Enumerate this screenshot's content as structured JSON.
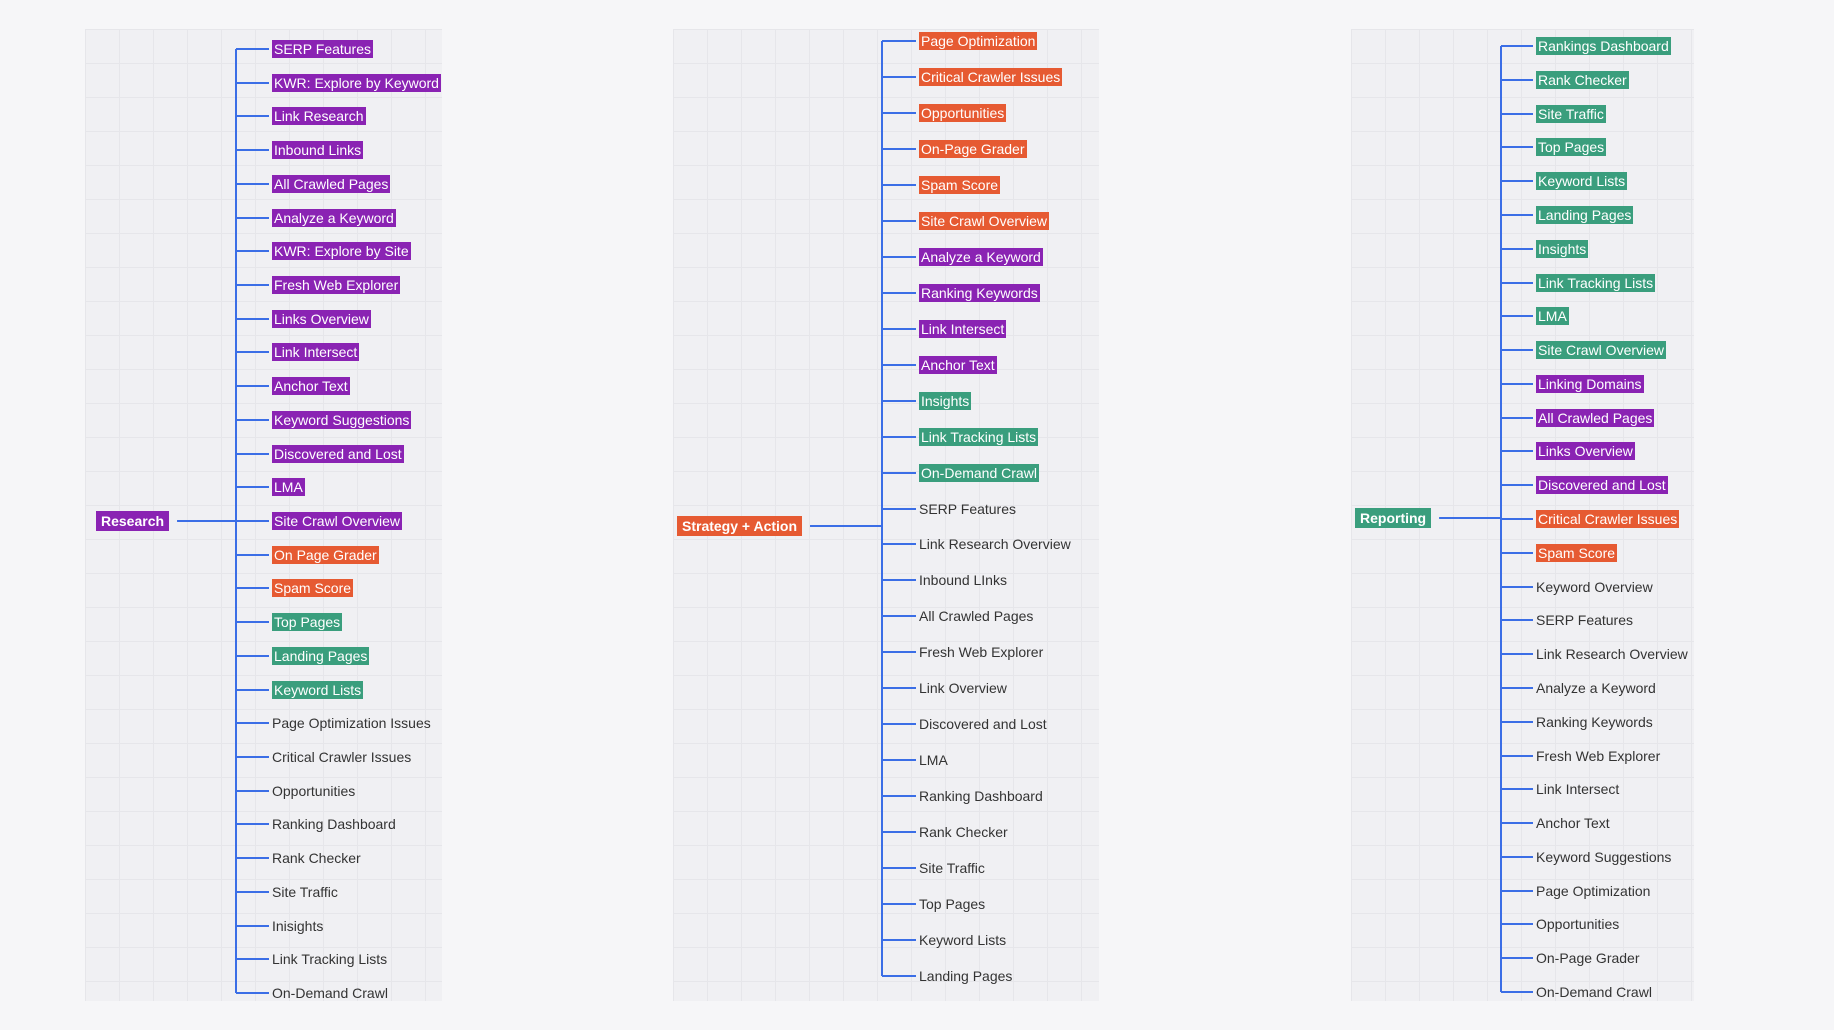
{
  "colors": {
    "purple": "#8a23b3",
    "orange": "#e65a32",
    "green": "#3a9e7d",
    "connector": "#3b6ee6"
  },
  "trees": [
    {
      "root": {
        "label": "Research",
        "color": "purple"
      },
      "items": [
        {
          "label": "SERP Features",
          "color": "purple"
        },
        {
          "label": "KWR: Explore by Keyword",
          "color": "purple"
        },
        {
          "label": "Link Research",
          "color": "purple"
        },
        {
          "label": "Inbound Links",
          "color": "purple"
        },
        {
          "label": "All Crawled Pages",
          "color": "purple"
        },
        {
          "label": "Analyze a Keyword",
          "color": "purple"
        },
        {
          "label": "KWR: Explore by Site",
          "color": "purple"
        },
        {
          "label": "Fresh Web Explorer",
          "color": "purple"
        },
        {
          "label": "Links Overview",
          "color": "purple"
        },
        {
          "label": "Link Intersect",
          "color": "purple"
        },
        {
          "label": "Anchor Text",
          "color": "purple"
        },
        {
          "label": "Keyword Suggestions",
          "color": "purple"
        },
        {
          "label": "Discovered and Lost",
          "color": "purple"
        },
        {
          "label": "LMA",
          "color": "purple"
        },
        {
          "label": "Site Crawl Overview",
          "color": "purple"
        },
        {
          "label": "On Page Grader",
          "color": "orange"
        },
        {
          "label": "Spam Score",
          "color": "orange"
        },
        {
          "label": "Top Pages",
          "color": "green"
        },
        {
          "label": "Landing Pages",
          "color": "green"
        },
        {
          "label": "Keyword Lists",
          "color": "green"
        },
        {
          "label": "Page Optimization Issues",
          "color": "plain"
        },
        {
          "label": "Critical Crawler Issues",
          "color": "plain"
        },
        {
          "label": "Opportunities",
          "color": "plain"
        },
        {
          "label": "Ranking Dashboard",
          "color": "plain"
        },
        {
          "label": "Rank Checker",
          "color": "plain"
        },
        {
          "label": "Site Traffic",
          "color": "plain"
        },
        {
          "label": "Inisights",
          "color": "plain"
        },
        {
          "label": "Link Tracking Lists",
          "color": "plain"
        },
        {
          "label": "On-Demand Crawl",
          "color": "plain"
        }
      ]
    },
    {
      "root": {
        "label": "Strategy + Action",
        "color": "orange"
      },
      "items": [
        {
          "label": "Page Optimization",
          "color": "orange"
        },
        {
          "label": "Critical Crawler Issues",
          "color": "orange"
        },
        {
          "label": "Opportunities",
          "color": "orange"
        },
        {
          "label": "On-Page Grader",
          "color": "orange"
        },
        {
          "label": "Spam Score",
          "color": "orange"
        },
        {
          "label": "Site Crawl Overview",
          "color": "orange"
        },
        {
          "label": "Analyze a Keyword",
          "color": "purple"
        },
        {
          "label": "Ranking Keywords",
          "color": "purple"
        },
        {
          "label": "Link Intersect",
          "color": "purple"
        },
        {
          "label": "Anchor Text",
          "color": "purple"
        },
        {
          "label": "Insights",
          "color": "green"
        },
        {
          "label": "Link Tracking Lists",
          "color": "green"
        },
        {
          "label": "On-Demand Crawl",
          "color": "green"
        },
        {
          "label": "SERP Features",
          "color": "plain"
        },
        {
          "label": "Link Research Overview",
          "color": "plain"
        },
        {
          "label": "Inbound LInks",
          "color": "plain"
        },
        {
          "label": "All Crawled Pages",
          "color": "plain"
        },
        {
          "label": "Fresh Web Explorer",
          "color": "plain"
        },
        {
          "label": "Link Overview",
          "color": "plain"
        },
        {
          "label": "Discovered and Lost",
          "color": "plain"
        },
        {
          "label": "LMA",
          "color": "plain"
        },
        {
          "label": "Ranking Dashboard",
          "color": "plain"
        },
        {
          "label": "Rank Checker",
          "color": "plain"
        },
        {
          "label": "Site Traffic",
          "color": "plain"
        },
        {
          "label": "Top Pages",
          "color": "plain"
        },
        {
          "label": "Keyword Lists",
          "color": "plain"
        },
        {
          "label": "Landing Pages",
          "color": "plain"
        }
      ]
    },
    {
      "root": {
        "label": "Reporting",
        "color": "green"
      },
      "items": [
        {
          "label": "Rankings Dashboard",
          "color": "green"
        },
        {
          "label": "Rank Checker",
          "color": "green"
        },
        {
          "label": "Site Traffic",
          "color": "green"
        },
        {
          "label": "Top Pages",
          "color": "green"
        },
        {
          "label": "Keyword Lists",
          "color": "green"
        },
        {
          "label": "Landing Pages",
          "color": "green"
        },
        {
          "label": "Insights",
          "color": "green"
        },
        {
          "label": "Link Tracking Lists",
          "color": "green"
        },
        {
          "label": "LMA",
          "color": "green"
        },
        {
          "label": "Site Crawl Overview",
          "color": "green"
        },
        {
          "label": "Linking Domains",
          "color": "purple"
        },
        {
          "label": "All Crawled Pages",
          "color": "purple"
        },
        {
          "label": "Links Overview",
          "color": "purple"
        },
        {
          "label": "Discovered and Lost",
          "color": "purple"
        },
        {
          "label": "Critical Crawler Issues",
          "color": "orange"
        },
        {
          "label": "Spam Score",
          "color": "orange"
        },
        {
          "label": "Keyword Overview",
          "color": "plain"
        },
        {
          "label": "SERP Features",
          "color": "plain"
        },
        {
          "label": "Link Research Overview",
          "color": "plain"
        },
        {
          "label": "Analyze a Keyword",
          "color": "plain"
        },
        {
          "label": "Ranking Keywords",
          "color": "plain"
        },
        {
          "label": "Fresh Web Explorer",
          "color": "plain"
        },
        {
          "label": "Link Intersect",
          "color": "plain"
        },
        {
          "label": "Anchor Text",
          "color": "plain"
        },
        {
          "label": "Keyword Suggestions",
          "color": "plain"
        },
        {
          "label": "Page Optimization",
          "color": "plain"
        },
        {
          "label": "Opportunities",
          "color": "plain"
        },
        {
          "label": "On-Page Grader",
          "color": "plain"
        },
        {
          "label": "On-Demand Crawl",
          "color": "plain"
        }
      ]
    }
  ]
}
